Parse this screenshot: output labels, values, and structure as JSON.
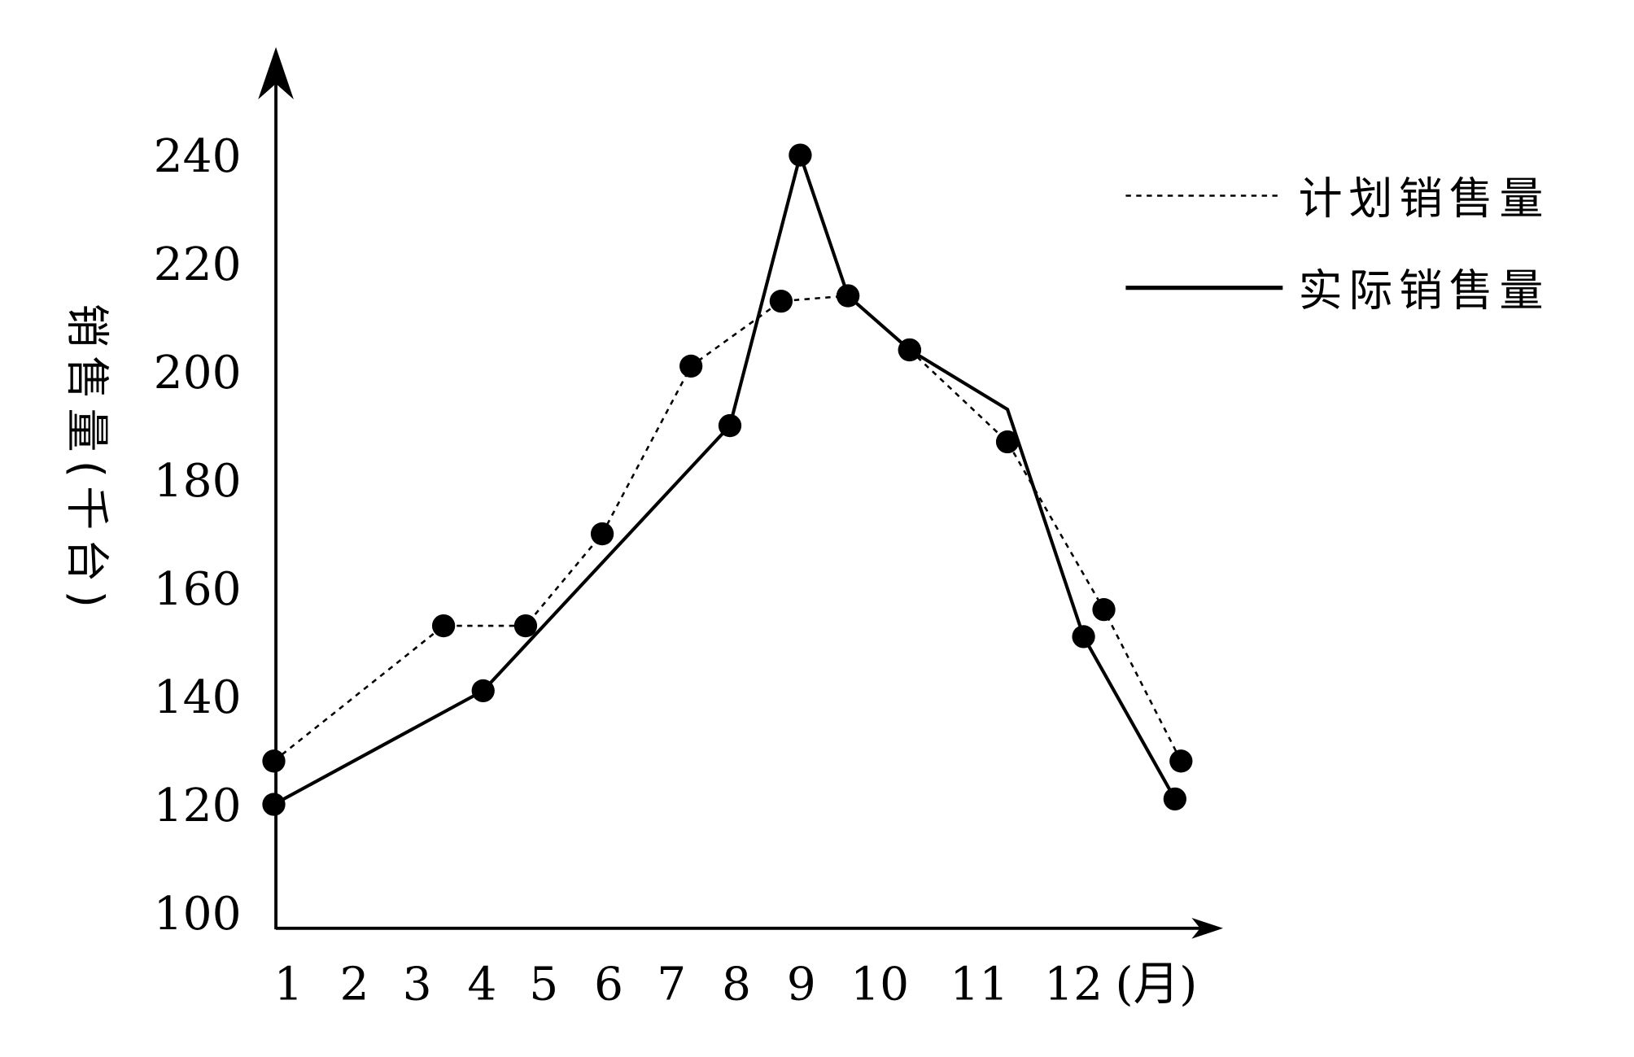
{
  "chart_data": {
    "type": "line",
    "title": "",
    "xlabel": "(月)",
    "ylabel": "销售量(千台)",
    "ylim": [
      100,
      250
    ],
    "xlim": [
      1,
      13
    ],
    "grid": false,
    "legend_position": "top-right",
    "y_ticks": [
      "100",
      "120",
      "140",
      "160",
      "180",
      "200",
      "220",
      "240"
    ],
    "x_ticks": [
      "1",
      "2",
      "3",
      "4",
      "5",
      "6",
      "7",
      "8",
      "9",
      "10",
      "11",
      "12"
    ],
    "series": [
      {
        "name": "计划销售量",
        "style": "dotted",
        "color": "#000000",
        "points": [
          [
            0.9,
            128
          ],
          [
            3.4,
            153
          ],
          [
            4.7,
            153
          ],
          [
            5.9,
            170
          ],
          [
            7.3,
            201
          ],
          [
            8.7,
            213
          ],
          [
            9.6,
            214
          ],
          [
            10.3,
            204
          ],
          [
            11.3,
            187
          ],
          [
            12.3,
            156
          ],
          [
            13.1,
            128
          ]
        ],
        "markers": [
          true,
          true,
          true,
          true,
          true,
          true,
          true,
          true,
          true,
          true,
          true
        ]
      },
      {
        "name": "实际销售量",
        "style": "solid",
        "color": "#000000",
        "points": [
          [
            0.9,
            120
          ],
          [
            4,
            141
          ],
          [
            7.9,
            190
          ],
          [
            9,
            240
          ],
          [
            9.6,
            214
          ],
          [
            10.3,
            204
          ],
          [
            11.3,
            193
          ],
          [
            12.1,
            151
          ],
          [
            13,
            121
          ]
        ],
        "markers": [
          true,
          true,
          true,
          true,
          true,
          true,
          false,
          true,
          true
        ]
      }
    ]
  }
}
